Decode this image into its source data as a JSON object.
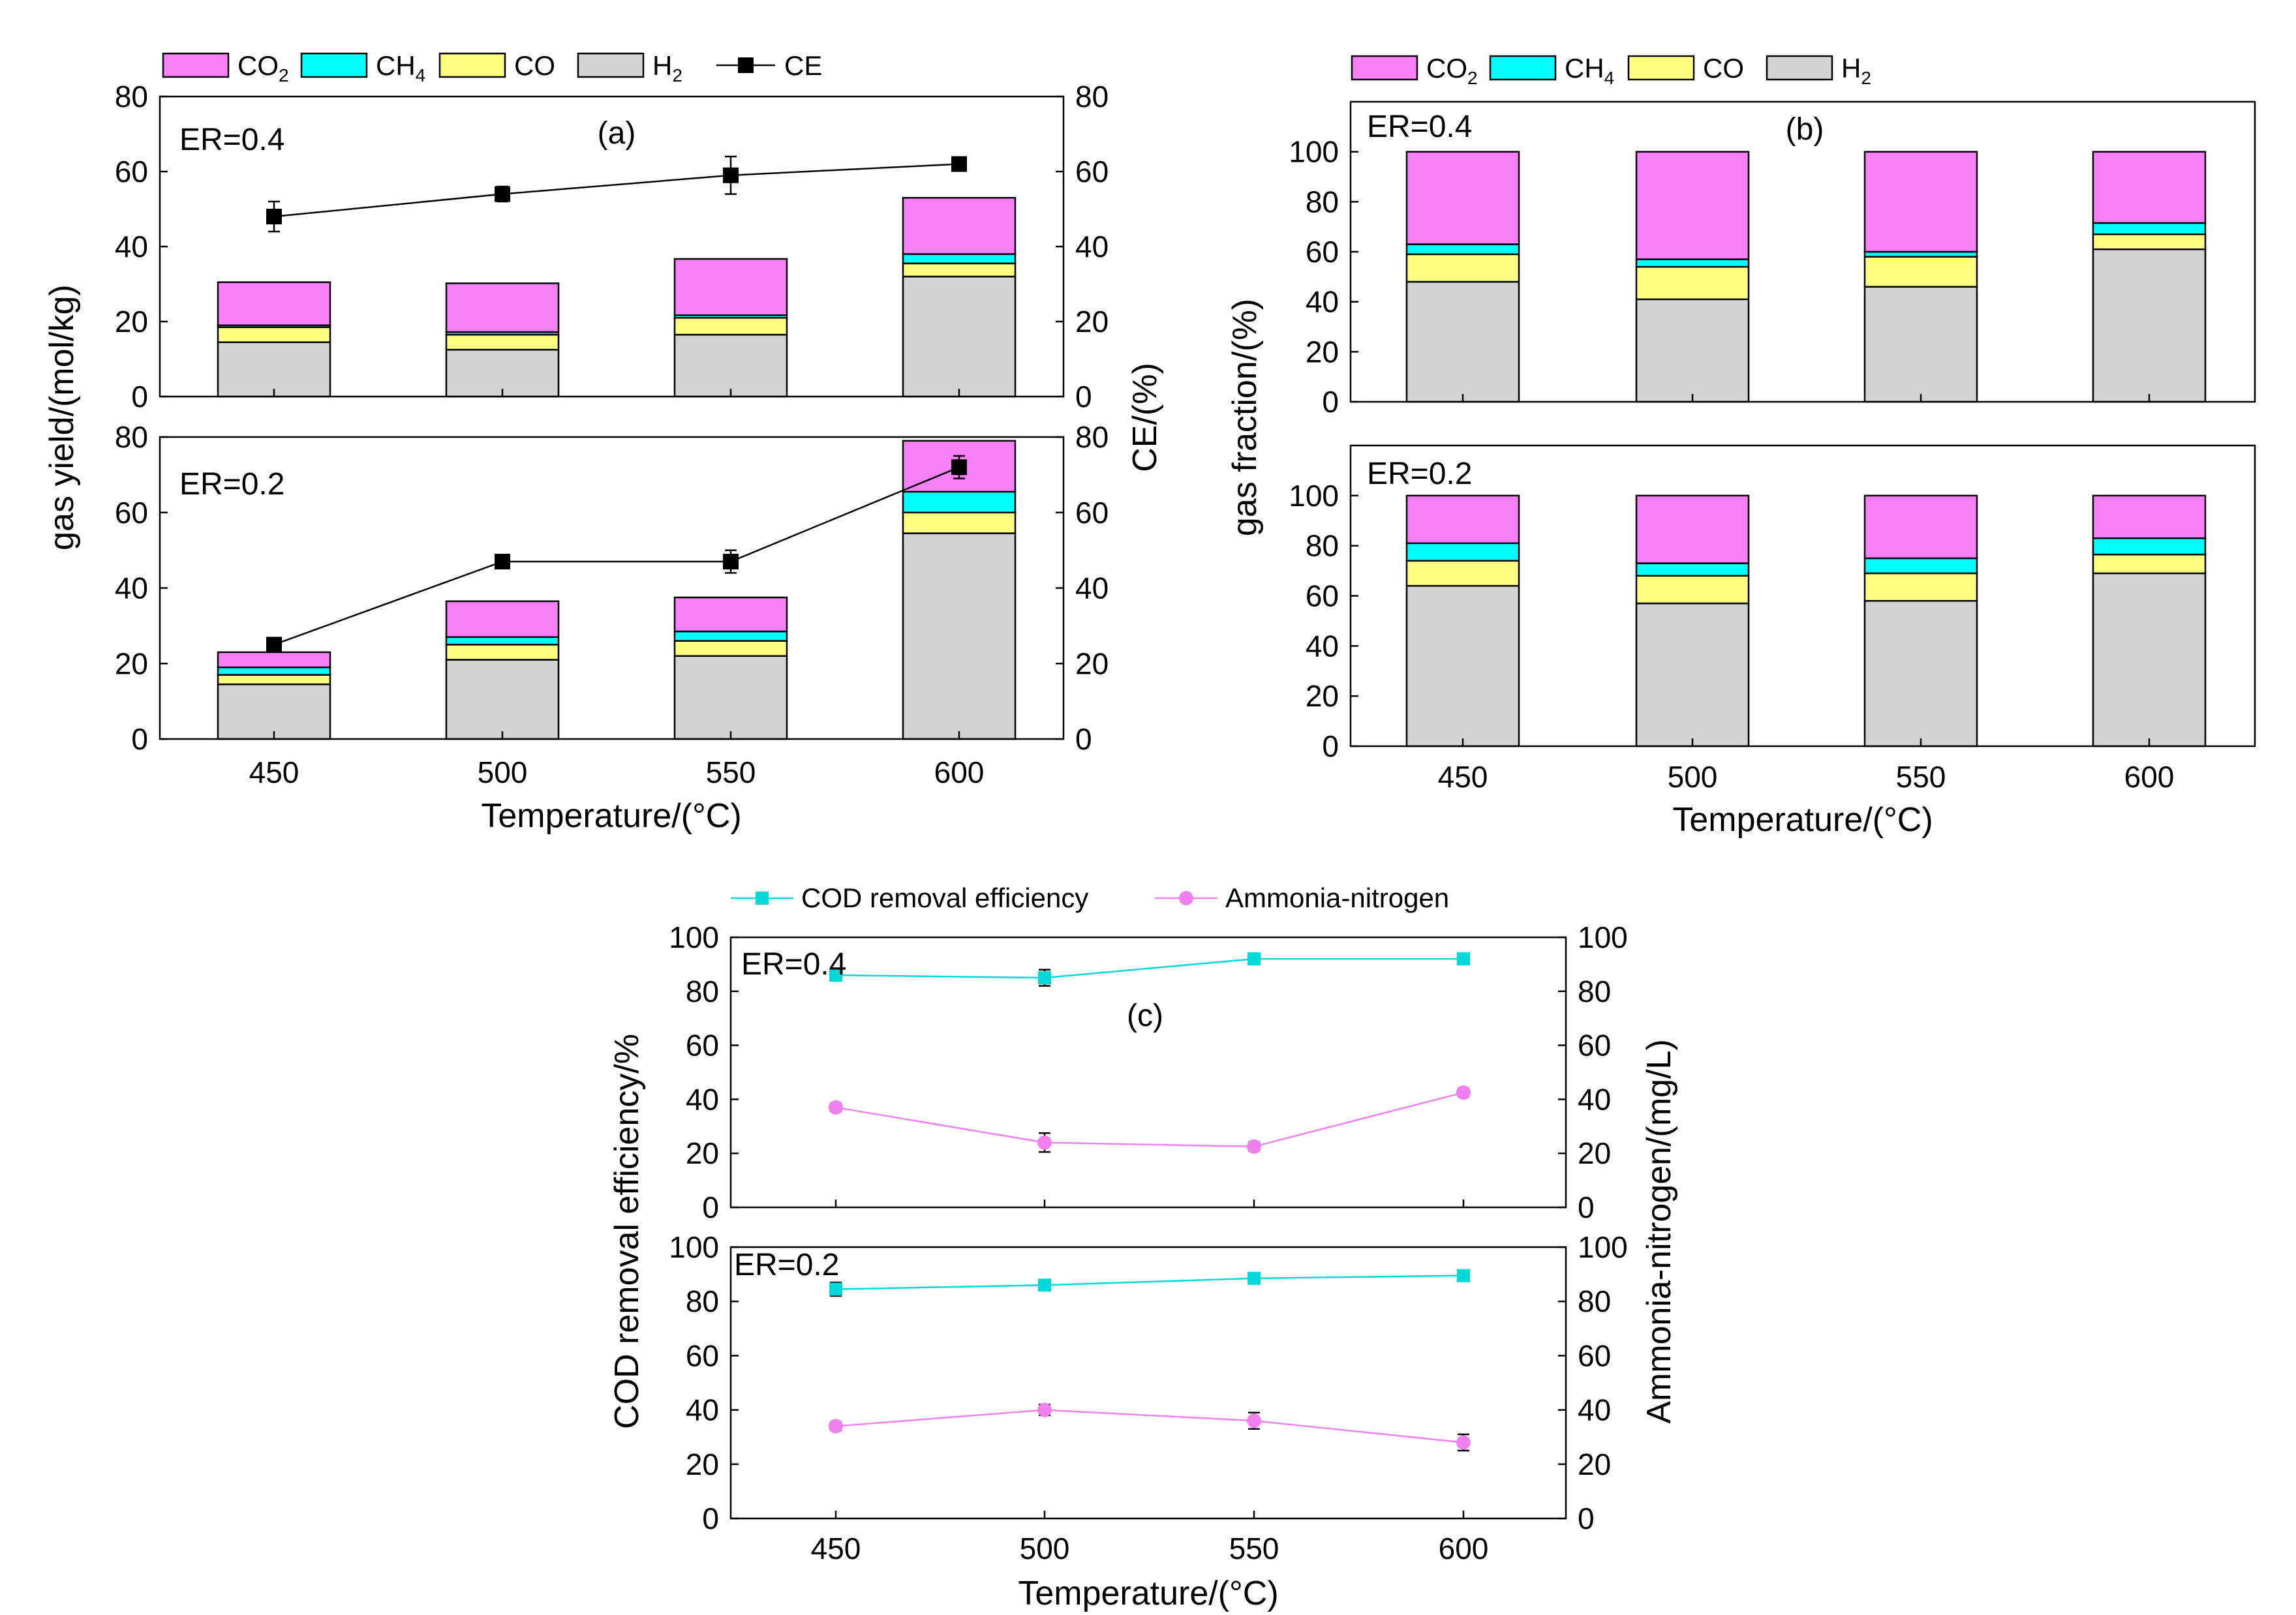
{
  "chart_data": [
    {
      "id": "a",
      "type": "bar",
      "stacked": true,
      "panel_label": "(a)",
      "categories": [
        "450",
        "500",
        "550",
        "600"
      ],
      "xlabel": "Temperature/(°C)",
      "ylabel": "gas yield/(mol/kg)",
      "y2label": "CE/(%)",
      "ylim": [
        0,
        80
      ],
      "y2lim": [
        0,
        80
      ],
      "yticks": [
        "0",
        "20",
        "40",
        "60",
        "80"
      ],
      "legend": [
        {
          "key": "CO2",
          "label": "CO",
          "sub": "2",
          "color": "#f77ff7"
        },
        {
          "key": "CH4",
          "label": "CH",
          "sub": "4",
          "color": "#00ffff"
        },
        {
          "key": "CO",
          "label": "CO",
          "sub": "",
          "color": "#ffff80"
        },
        {
          "key": "H2",
          "label": "H",
          "sub": "2",
          "color": "#d3d3d3"
        },
        {
          "key": "CE",
          "label": "CE",
          "sub": "",
          "color": "#000000",
          "marker": "square"
        }
      ],
      "panels": [
        {
          "tag": "ER=0.4",
          "series": {
            "H2": [
              14.5,
              12.5,
              16.5,
              32
            ],
            "CO": [
              4,
              4,
              4.5,
              3.5
            ],
            "CH4": [
              0.5,
              0.7,
              0.7,
              2.5
            ],
            "CO2": [
              11.5,
              13,
              15,
              15
            ]
          },
          "ce": [
            48,
            54,
            59,
            62
          ],
          "ce_err": [
            4,
            2,
            5,
            1.5
          ]
        },
        {
          "tag": "ER=0.2",
          "series": {
            "H2": [
              14.5,
              21,
              22,
              54.5
            ],
            "CO": [
              2.5,
              4,
              4,
              5.5
            ],
            "CH4": [
              2,
              2,
              2.5,
              5.5
            ],
            "CO2": [
              4,
              9.5,
              9,
              13.5
            ]
          },
          "ce": [
            25,
            47,
            47,
            72
          ],
          "ce_err": [
            1,
            1,
            3,
            3
          ]
        }
      ]
    },
    {
      "id": "b",
      "type": "bar",
      "stacked": true,
      "panel_label": "(b)",
      "categories": [
        "450",
        "500",
        "550",
        "600"
      ],
      "xlabel": "Temperature/(°C)",
      "ylabel": "gas fraction/(%)",
      "ylim": [
        0,
        120
      ],
      "yticks": [
        "0",
        "20",
        "40",
        "60",
        "80",
        "100"
      ],
      "legend": [
        {
          "key": "CO2",
          "label": "CO",
          "sub": "2",
          "color": "#f77ff7"
        },
        {
          "key": "CH4",
          "label": "CH",
          "sub": "4",
          "color": "#00ffff"
        },
        {
          "key": "CO",
          "label": "CO",
          "sub": "",
          "color": "#ffff80"
        },
        {
          "key": "H2",
          "label": "H",
          "sub": "2",
          "color": "#d3d3d3"
        }
      ],
      "panels": [
        {
          "tag": "ER=0.4",
          "series": {
            "H2": [
              48,
              41,
              46,
              61
            ],
            "CO": [
              11,
              13,
              12,
              6
            ],
            "CH4": [
              4,
              3,
              2,
              4.5
            ],
            "CO2": [
              37,
              43,
              40,
              28.5
            ]
          }
        },
        {
          "tag": "ER=0.2",
          "series": {
            "H2": [
              64,
              57,
              58,
              69
            ],
            "CO": [
              10,
              11,
              11,
              7.5
            ],
            "CH4": [
              7,
              5,
              6,
              6.5
            ],
            "CO2": [
              19,
              27,
              25,
              17
            ]
          }
        }
      ]
    },
    {
      "id": "c",
      "type": "line",
      "panel_label": "(c)",
      "x": [
        "450",
        "500",
        "550",
        "600"
      ],
      "xlabel": "Temperature/(°C)",
      "ylabel": "COD removal efficiency/%",
      "y2label": "Ammonia-nitrogen/(mg/L)",
      "ylim": [
        0,
        100
      ],
      "y2lim": [
        0,
        100
      ],
      "yticks": [
        "0",
        "20",
        "40",
        "60",
        "80",
        "100"
      ],
      "legend": [
        {
          "key": "cod",
          "label": "COD removal efficiency",
          "color": "#00d8d8",
          "marker": "square"
        },
        {
          "key": "nh3",
          "label": "Ammonia-nitrogen",
          "color": "#f07ff0",
          "marker": "circle"
        }
      ],
      "panels": [
        {
          "tag": "ER=0.4",
          "cod": [
            86,
            85,
            92,
            92
          ],
          "cod_err": [
            1.5,
            3,
            1.5,
            2
          ],
          "nh3": [
            37,
            24,
            22.5,
            42.5
          ],
          "nh3_err": [
            1.5,
            3.5,
            1.5,
            1.5
          ]
        },
        {
          "tag": "ER=0.2",
          "cod": [
            84.5,
            86,
            88.5,
            89.5
          ],
          "cod_err": [
            2.5,
            1.5,
            1.5,
            2
          ],
          "nh3": [
            34,
            40,
            36,
            28
          ],
          "nh3_err": [
            1.5,
            2,
            3,
            3
          ]
        }
      ]
    }
  ]
}
